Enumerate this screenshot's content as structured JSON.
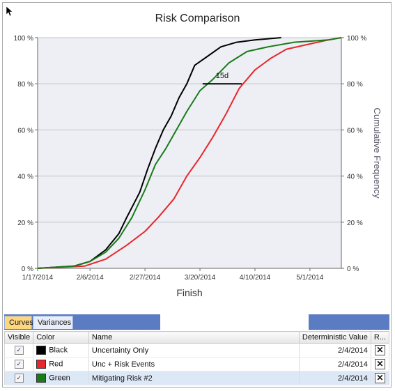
{
  "chart_data": {
    "type": "line",
    "title": "Risk Comparison",
    "xlabel": "Finish",
    "ylabel": "Cumulative Frequency",
    "x_ticks": [
      "1/17/2014",
      "2/6/2014",
      "2/27/2014",
      "3/20/2014",
      "4/10/2014",
      "5/1/2014"
    ],
    "y_ticks": [
      "0 %",
      "20 %",
      "40 %",
      "60 %",
      "80 %",
      "100 %"
    ],
    "ylim": [
      0,
      100
    ],
    "x_range": [
      "1/17/2014",
      "5/13/2014"
    ],
    "grid": true,
    "annotation": {
      "text": "15d",
      "from": "3/21/2014",
      "to": "4/5/2014",
      "y": 80
    },
    "series": [
      {
        "name": "Uncertainty Only",
        "color": "#000000",
        "points": [
          [
            "1/17/2014",
            0
          ],
          [
            "1/31/2014",
            1
          ],
          [
            "2/6/2014",
            3
          ],
          [
            "2/12/2014",
            8
          ],
          [
            "2/17/2014",
            15
          ],
          [
            "2/20/2014",
            22
          ],
          [
            "2/25/2014",
            33
          ],
          [
            "2/28/2014",
            43
          ],
          [
            "3/3/2014",
            52
          ],
          [
            "3/6/2014",
            60
          ],
          [
            "3/9/2014",
            66
          ],
          [
            "3/12/2014",
            74
          ],
          [
            "3/15/2014",
            80
          ],
          [
            "3/18/2014",
            88
          ],
          [
            "3/23/2014",
            92
          ],
          [
            "3/28/2014",
            96
          ],
          [
            "4/3/2014",
            98
          ],
          [
            "4/10/2014",
            99
          ],
          [
            "4/20/2014",
            100
          ]
        ]
      },
      {
        "name": "Unc + Risk Events",
        "color": "#e8262b",
        "points": [
          [
            "1/17/2014",
            0
          ],
          [
            "2/4/2014",
            1
          ],
          [
            "2/12/2014",
            4
          ],
          [
            "2/20/2014",
            10
          ],
          [
            "2/27/2014",
            16
          ],
          [
            "3/4/2014",
            22
          ],
          [
            "3/10/2014",
            30
          ],
          [
            "3/15/2014",
            40
          ],
          [
            "3/20/2014",
            48
          ],
          [
            "3/25/2014",
            57
          ],
          [
            "3/30/2014",
            67
          ],
          [
            "4/4/2014",
            78
          ],
          [
            "4/10/2014",
            86
          ],
          [
            "4/16/2014",
            91
          ],
          [
            "4/22/2014",
            95
          ],
          [
            "4/30/2014",
            97
          ],
          [
            "5/8/2014",
            99
          ],
          [
            "5/13/2014",
            100
          ]
        ]
      },
      {
        "name": "Mitigating Risk #2",
        "color": "#1a7a1a",
        "points": [
          [
            "1/17/2014",
            0
          ],
          [
            "1/31/2014",
            1
          ],
          [
            "2/6/2014",
            3
          ],
          [
            "2/12/2014",
            7
          ],
          [
            "2/17/2014",
            13
          ],
          [
            "2/22/2014",
            22
          ],
          [
            "2/27/2014",
            34
          ],
          [
            "3/3/2014",
            45
          ],
          [
            "3/7/2014",
            52
          ],
          [
            "3/11/2014",
            60
          ],
          [
            "3/15/2014",
            68
          ],
          [
            "3/20/2014",
            77
          ],
          [
            "3/25/2014",
            82
          ],
          [
            "3/31/2014",
            89
          ],
          [
            "4/7/2014",
            94
          ],
          [
            "4/15/2014",
            96
          ],
          [
            "4/25/2014",
            98
          ],
          [
            "5/8/2014",
            99
          ],
          [
            "5/13/2014",
            100
          ]
        ]
      }
    ]
  },
  "tabs": [
    {
      "label": "Curves",
      "active": true
    },
    {
      "label": "Variances",
      "active": false
    }
  ],
  "grid": {
    "headers": {
      "visible": "Visible",
      "color": "Color",
      "name": "Name",
      "deterministic": "Deterministic Value",
      "remove": "R..."
    },
    "rows": [
      {
        "visible": true,
        "color_name": "Black",
        "color": "#000000",
        "name": "Uncertainty Only",
        "deterministic": "2/4/2014"
      },
      {
        "visible": true,
        "color_name": "Red",
        "color": "#e8262b",
        "name": "Unc + Risk Events",
        "deterministic": "2/4/2014"
      },
      {
        "visible": true,
        "color_name": "Green",
        "color": "#1a7a1a",
        "name": "Mitigating Risk #2",
        "deterministic": "2/4/2014"
      }
    ]
  },
  "icons": {
    "cursor": "mouse-pointer-icon",
    "check": "checkbox-checked-icon",
    "remove": "close-icon"
  }
}
